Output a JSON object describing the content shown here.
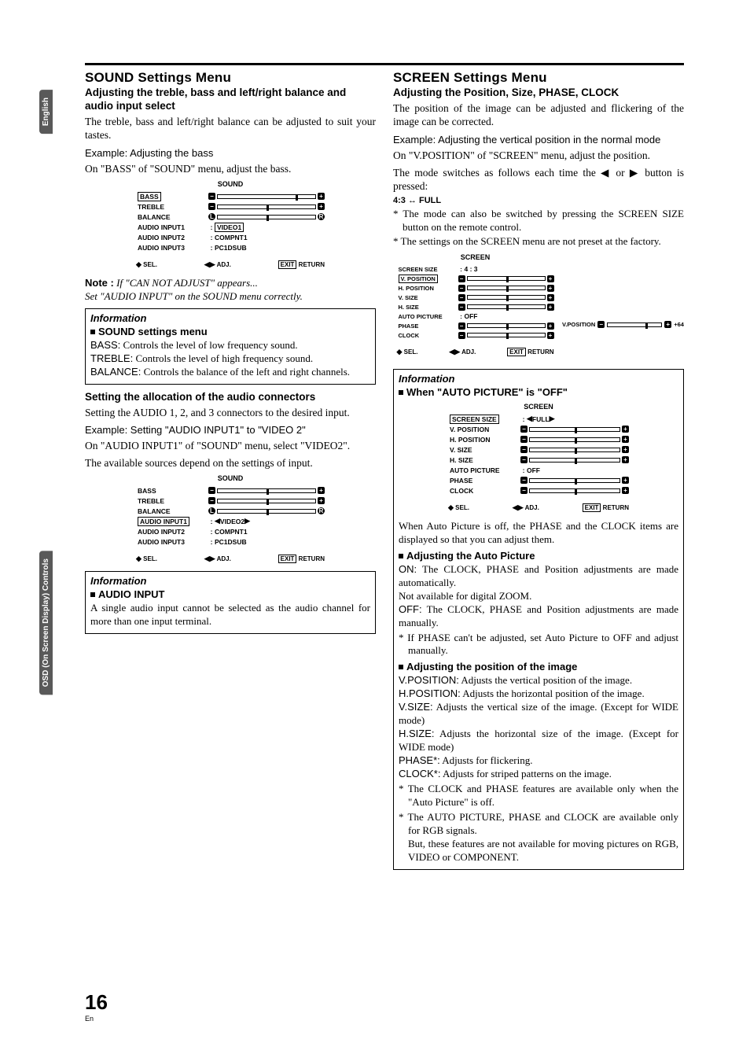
{
  "sidebar": {
    "tab1": "English",
    "tab2": "OSD (On Screen Display) Controls"
  },
  "left": {
    "h1": "SOUND Settings Menu",
    "sub1": "Adjusting the treble, bass and left/right balance and audio input select",
    "p1": "The treble, bass and left/right balance can be adjusted to suit your tastes.",
    "ex1": "Example: Adjusting the bass",
    "p2": "On \"BASS\" of \"SOUND\" menu, adjust the bass.",
    "osd1": {
      "title": "SOUND",
      "rows": [
        {
          "lbl": "BASS",
          "sel": true,
          "slider": true,
          "pos": 80,
          "left": "−",
          "right": "+"
        },
        {
          "lbl": "TREBLE",
          "slider": true,
          "pos": 50,
          "left": "−",
          "right": "+"
        },
        {
          "lbl": "BALANCE",
          "slider": true,
          "pos": 50,
          "left": "L",
          "right": "R",
          "round": true
        },
        {
          "lbl": "AUDIO INPUT1",
          "colon": true,
          "val": "VIDEO1",
          "valsel": true
        },
        {
          "lbl": "AUDIO INPUT2",
          "colon": true,
          "val": "COMPNT1"
        },
        {
          "lbl": "AUDIO INPUT3",
          "colon": true,
          "val": "PC1DSUB"
        }
      ],
      "footer": {
        "sel": "SEL.",
        "adj": "ADJ.",
        "exit": "EXIT",
        "ret": "RETURN"
      }
    },
    "note_label": "Note :",
    "note1": "If \"CAN NOT ADJUST\" appears...",
    "note2": "Set \"AUDIO INPUT\" on the SOUND menu correctly.",
    "info1": {
      "title": "Information",
      "sub": "SOUND settings menu",
      "defs": [
        {
          "t": "BASS:",
          "d": " Controls the level of low frequency sound."
        },
        {
          "t": "TREBLE:",
          "d": " Controls the level of high frequency sound."
        },
        {
          "t": "BALANCE:",
          "d": " Controls the balance of the left and right channels."
        }
      ]
    },
    "sub2": "Setting the allocation of the audio connectors",
    "p3": "Setting the AUDIO 1, 2, and 3 connectors to the desired input.",
    "ex2": "Example: Setting \"AUDIO INPUT1\" to \"VIDEO 2\"",
    "p4": "On \"AUDIO INPUT1\" of \"SOUND\" menu, select \"VIDEO2\".",
    "p5": "The available sources depend on the settings of input.",
    "osd2": {
      "title": "SOUND",
      "rows": [
        {
          "lbl": "BASS",
          "slider": true,
          "pos": 50,
          "left": "−",
          "right": "+"
        },
        {
          "lbl": "TREBLE",
          "slider": true,
          "pos": 50,
          "left": "−",
          "right": "+"
        },
        {
          "lbl": "BALANCE",
          "slider": true,
          "pos": 50,
          "left": "L",
          "right": "R",
          "round": true
        },
        {
          "lbl": "AUDIO INPUT1",
          "sel": true,
          "colon": true,
          "val": "VIDEO2",
          "arrows": true
        },
        {
          "lbl": "AUDIO INPUT2",
          "colon": true,
          "val": "COMPNT1"
        },
        {
          "lbl": "AUDIO INPUT3",
          "colon": true,
          "val": "PC1DSUB"
        }
      ],
      "footer": {
        "sel": "SEL.",
        "adj": "ADJ.",
        "exit": "EXIT",
        "ret": "RETURN"
      }
    },
    "info2": {
      "title": "Information",
      "sub": "AUDIO INPUT",
      "body": "A single audio input cannot be selected as the audio channel for more than one input terminal."
    }
  },
  "right": {
    "h1": "SCREEN Settings Menu",
    "sub1": "Adjusting the Position, Size, PHASE, CLOCK",
    "p1": "The position of the image can be adjusted and flickering of the image can be corrected.",
    "ex1": "Example: Adjusting the vertical position in the normal mode",
    "p2": "On \"V.POSITION\" of \"SCREEN\" menu, adjust the position.",
    "p3": "The mode switches as follows each time the ◀ or ▶ button is pressed:",
    "toggle": "4:3 ↔ FULL",
    "b1": "The mode can also be switched by pressing the SCREEN SIZE button on the remote control.",
    "b2": "The settings on the SCREEN menu are not preset at the factory.",
    "osd3": {
      "title": "SCREEN",
      "rows": [
        {
          "lbl": "SCREEN SIZE",
          "colon": true,
          "val": "4 : 3"
        },
        {
          "lbl": "V. POSITION",
          "sel": true,
          "slider": true,
          "pos": 50,
          "left": "−",
          "right": "+"
        },
        {
          "lbl": "H. POSITION",
          "slider": true,
          "pos": 50,
          "left": "−",
          "right": "+"
        },
        {
          "lbl": "V. SIZE",
          "slider": true,
          "pos": 50,
          "left": "−",
          "right": "+"
        },
        {
          "lbl": "H. SIZE",
          "slider": true,
          "pos": 50,
          "left": "−",
          "right": "+"
        },
        {
          "lbl": "AUTO PICTURE",
          "colon": true,
          "val": "OFF"
        },
        {
          "lbl": "PHASE",
          "slider": true,
          "pos": 50,
          "left": "−",
          "right": "+"
        },
        {
          "lbl": "CLOCK",
          "slider": true,
          "pos": 50,
          "left": "−",
          "right": "+"
        }
      ],
      "footer": {
        "sel": "SEL.",
        "adj": "ADJ.",
        "exit": "EXIT",
        "ret": "RETURN"
      }
    },
    "vpos": {
      "label": "V.POSITION",
      "val": "+64"
    },
    "info3": {
      "title": "Information",
      "sub": "When \"AUTO PICTURE\" is \"OFF\"",
      "osd4": {
        "title": "SCREEN",
        "rows": [
          {
            "lbl": "SCREEN SIZE",
            "sel": true,
            "colon": true,
            "val": "FULL",
            "arrows": true
          },
          {
            "lbl": "V. POSITION",
            "slider": true,
            "pos": 50,
            "left": "−",
            "right": "+"
          },
          {
            "lbl": "H. POSITION",
            "slider": true,
            "pos": 50,
            "left": "−",
            "right": "+"
          },
          {
            "lbl": "V. SIZE",
            "slider": true,
            "pos": 50,
            "left": "−",
            "right": "+"
          },
          {
            "lbl": "H. SIZE",
            "slider": true,
            "pos": 50,
            "left": "−",
            "right": "+"
          },
          {
            "lbl": "AUTO PICTURE",
            "colon": true,
            "val": "OFF"
          },
          {
            "lbl": "PHASE",
            "slider": true,
            "pos": 50,
            "left": "−",
            "right": "+"
          },
          {
            "lbl": "CLOCK",
            "slider": true,
            "pos": 50,
            "left": "−",
            "right": "+"
          }
        ],
        "footer": {
          "sel": "SEL.",
          "adj": "ADJ.",
          "exit": "EXIT",
          "ret": "RETURN"
        }
      },
      "p1": "When Auto Picture is off, the PHASE and the CLOCK items are displayed so that you can adjust them.",
      "sub2": "Adjusting the Auto Picture",
      "on": "ON:",
      "on_d": " The CLOCK, PHASE and Position adjustments are made automatically.",
      "on2": "Not available for digital ZOOM.",
      "off": "OFF:",
      "off_d": " The CLOCK, PHASE and Position adjustments are made manually.",
      "star1": "If PHASE can't be adjusted, set Auto Picture to OFF and adjust manually.",
      "sub3": "Adjusting the position of the image",
      "defs": [
        {
          "t": "V.POSITION:",
          "d": " Adjusts the vertical position of the image."
        },
        {
          "t": "H.POSITION:",
          "d": " Adjusts the horizontal position of the image."
        },
        {
          "t": "V.SIZE:",
          "d": " Adjusts the vertical size of the image. (Except for WIDE mode)"
        },
        {
          "t": "H.SIZE:",
          "d": " Adjusts the horizontal size of the image. (Except for WIDE mode)"
        },
        {
          "t": "PHASE*:",
          "d": " Adjusts for flickering."
        },
        {
          "t": "CLOCK*:",
          "d": " Adjusts for striped patterns on the image."
        }
      ],
      "star2": "The CLOCK and PHASE features are available only when the \"Auto Picture\" is off.",
      "star3": "The AUTO PICTURE, PHASE and CLOCK are available only for RGB signals.",
      "star3b": "But, these features are not available for moving pictures on RGB, VIDEO or COMPONENT."
    }
  },
  "page": {
    "num": "16",
    "lang": "En"
  }
}
